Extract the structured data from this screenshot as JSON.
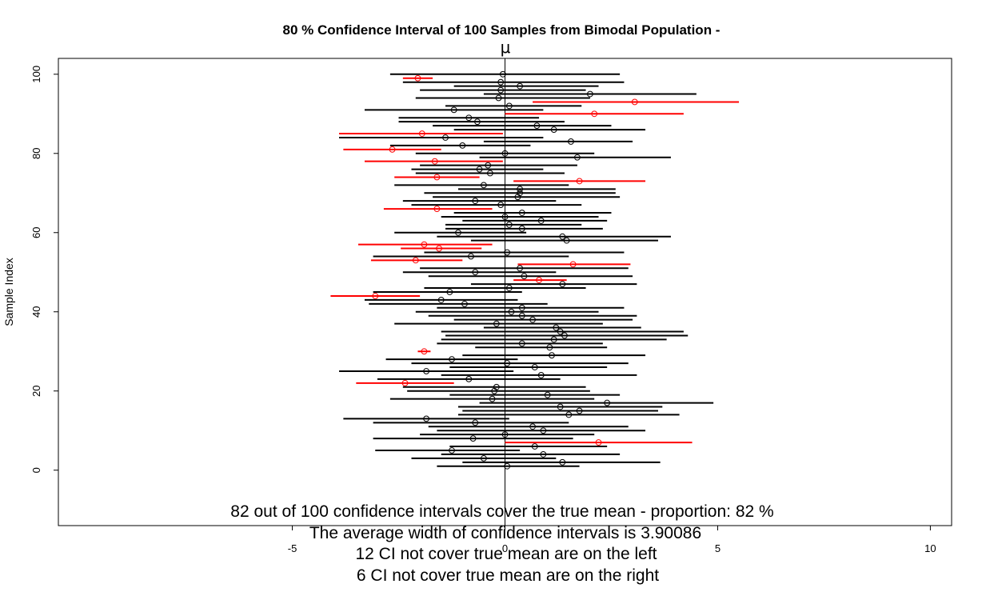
{
  "chart_data": {
    "type": "interval",
    "title": "80 % Confidence Interval of 100  Samples from Bimodal Population -",
    "reference_line_label": "μ",
    "true_mean": 0,
    "xlabel": "",
    "ylabel": "Sample Index",
    "xlim": [
      -10.5,
      10.5
    ],
    "ylim": [
      -14,
      104
    ],
    "x_ticks": [
      -5,
      0,
      5,
      10
    ],
    "y_ticks": [
      0,
      20,
      40,
      60,
      80,
      100
    ],
    "grid": false,
    "colors": {
      "covers": "#000000",
      "misses": "#ff0000",
      "reference": "#000000"
    },
    "intervals": [
      {
        "index": 1,
        "mean": 0.05,
        "lower": -1.6,
        "upper": 1.75,
        "covers": true
      },
      {
        "index": 2,
        "mean": 1.35,
        "lower": -1.0,
        "upper": 3.65,
        "covers": true
      },
      {
        "index": 3,
        "mean": -0.5,
        "lower": -2.2,
        "upper": 1.2,
        "covers": true
      },
      {
        "index": 4,
        "mean": 0.9,
        "lower": -1.5,
        "upper": 2.7,
        "covers": true
      },
      {
        "index": 5,
        "mean": -1.25,
        "lower": -3.05,
        "upper": 0.35,
        "covers": true
      },
      {
        "index": 6,
        "mean": 0.7,
        "lower": -1.3,
        "upper": 2.4,
        "covers": true
      },
      {
        "index": 7,
        "mean": 2.2,
        "lower": 0.0,
        "upper": 4.4,
        "covers": false
      },
      {
        "index": 8,
        "mean": -0.75,
        "lower": -3.1,
        "upper": 1.6,
        "covers": true
      },
      {
        "index": 9,
        "mean": 0.0,
        "lower": -2.0,
        "upper": 2.1,
        "covers": true
      },
      {
        "index": 10,
        "mean": 0.9,
        "lower": -1.6,
        "upper": 3.3,
        "covers": true
      },
      {
        "index": 11,
        "mean": 0.65,
        "lower": -1.8,
        "upper": 2.9,
        "covers": true
      },
      {
        "index": 12,
        "mean": -0.7,
        "lower": -3.1,
        "upper": 1.5,
        "covers": true
      },
      {
        "index": 13,
        "mean": -1.85,
        "lower": -3.8,
        "upper": 0.1,
        "covers": true
      },
      {
        "index": 14,
        "mean": 1.5,
        "lower": -1.1,
        "upper": 4.1,
        "covers": true
      },
      {
        "index": 15,
        "mean": 1.75,
        "lower": -1.0,
        "upper": 3.6,
        "covers": true
      },
      {
        "index": 16,
        "mean": 1.3,
        "lower": -1.1,
        "upper": 3.7,
        "covers": true
      },
      {
        "index": 17,
        "mean": 2.4,
        "lower": -0.6,
        "upper": 4.9,
        "covers": true
      },
      {
        "index": 18,
        "mean": -0.3,
        "lower": -2.7,
        "upper": 2.1,
        "covers": true
      },
      {
        "index": 19,
        "mean": 1.0,
        "lower": -1.3,
        "upper": 2.7,
        "covers": true
      },
      {
        "index": 20,
        "mean": -0.25,
        "lower": -2.3,
        "upper": 2.0,
        "covers": true
      },
      {
        "index": 21,
        "mean": -0.2,
        "lower": -2.4,
        "upper": 1.9,
        "covers": true
      },
      {
        "index": 22,
        "mean": -2.35,
        "lower": -3.5,
        "upper": -1.2,
        "covers": false
      },
      {
        "index": 23,
        "mean": -0.85,
        "lower": -3.0,
        "upper": 1.3,
        "covers": true
      },
      {
        "index": 24,
        "mean": 0.85,
        "lower": -1.5,
        "upper": 3.1,
        "covers": true
      },
      {
        "index": 25,
        "mean": -1.85,
        "lower": -3.9,
        "upper": 0.2,
        "covers": true
      },
      {
        "index": 26,
        "mean": 0.7,
        "lower": -1.3,
        "upper": 2.4,
        "covers": true
      },
      {
        "index": 27,
        "mean": 0.05,
        "lower": -2.2,
        "upper": 2.9,
        "covers": true
      },
      {
        "index": 28,
        "mean": -1.25,
        "lower": -2.8,
        "upper": 0.3,
        "covers": true
      },
      {
        "index": 29,
        "mean": 1.1,
        "lower": -1.0,
        "upper": 3.3,
        "covers": true
      },
      {
        "index": 30,
        "mean": -1.9,
        "lower": -2.05,
        "upper": -1.75,
        "covers": false
      },
      {
        "index": 31,
        "mean": 1.05,
        "lower": -0.7,
        "upper": 2.4,
        "covers": true
      },
      {
        "index": 32,
        "mean": 0.4,
        "lower": -1.6,
        "upper": 2.3,
        "covers": true
      },
      {
        "index": 33,
        "mean": 1.15,
        "lower": -1.5,
        "upper": 3.8,
        "covers": true
      },
      {
        "index": 34,
        "mean": 1.4,
        "lower": -1.4,
        "upper": 4.3,
        "covers": true
      },
      {
        "index": 35,
        "mean": 1.3,
        "lower": -1.5,
        "upper": 4.2,
        "covers": true
      },
      {
        "index": 36,
        "mean": 1.2,
        "lower": -0.5,
        "upper": 3.2,
        "covers": true
      },
      {
        "index": 37,
        "mean": -0.2,
        "lower": -2.6,
        "upper": 2.3,
        "covers": true
      },
      {
        "index": 38,
        "mean": 0.65,
        "lower": -1.2,
        "upper": 3.0,
        "covers": true
      },
      {
        "index": 39,
        "mean": 0.4,
        "lower": -1.8,
        "upper": 3.1,
        "covers": true
      },
      {
        "index": 40,
        "mean": 0.15,
        "lower": -2.1,
        "upper": 2.2,
        "covers": true
      },
      {
        "index": 41,
        "mean": 0.4,
        "lower": -1.6,
        "upper": 2.8,
        "covers": true
      },
      {
        "index": 42,
        "mean": -0.95,
        "lower": -3.2,
        "upper": 1.0,
        "covers": true
      },
      {
        "index": 43,
        "mean": -1.5,
        "lower": -3.3,
        "upper": 0.3,
        "covers": true
      },
      {
        "index": 44,
        "mean": -3.05,
        "lower": -4.1,
        "upper": -2.0,
        "covers": false
      },
      {
        "index": 45,
        "mean": -1.3,
        "lower": -3.1,
        "upper": 0.4,
        "covers": true
      },
      {
        "index": 46,
        "mean": 0.1,
        "lower": -1.9,
        "upper": 1.9,
        "covers": true
      },
      {
        "index": 47,
        "mean": 1.35,
        "lower": -0.8,
        "upper": 3.1,
        "covers": true
      },
      {
        "index": 48,
        "mean": 0.8,
        "lower": 0.2,
        "upper": 1.45,
        "covers": false
      },
      {
        "index": 49,
        "mean": 0.45,
        "lower": -1.8,
        "upper": 3.0,
        "covers": true
      },
      {
        "index": 50,
        "mean": -0.7,
        "lower": -2.4,
        "upper": 1.2,
        "covers": true
      },
      {
        "index": 51,
        "mean": 0.35,
        "lower": -2.0,
        "upper": 2.9,
        "covers": true
      },
      {
        "index": 52,
        "mean": 1.6,
        "lower": 0.3,
        "upper": 2.95,
        "covers": false
      },
      {
        "index": 53,
        "mean": -2.1,
        "lower": -3.15,
        "upper": -1.0,
        "covers": false
      },
      {
        "index": 54,
        "mean": -0.8,
        "lower": -3.1,
        "upper": 1.5,
        "covers": true
      },
      {
        "index": 55,
        "mean": 0.05,
        "lower": -1.9,
        "upper": 2.8,
        "covers": true
      },
      {
        "index": 56,
        "mean": -1.55,
        "lower": -2.45,
        "upper": -0.55,
        "covers": false
      },
      {
        "index": 57,
        "mean": -1.9,
        "lower": -3.45,
        "upper": -0.3,
        "covers": false
      },
      {
        "index": 58,
        "mean": 1.45,
        "lower": -0.8,
        "upper": 3.6,
        "covers": true
      },
      {
        "index": 59,
        "mean": 1.35,
        "lower": -1.6,
        "upper": 3.9,
        "covers": true
      },
      {
        "index": 60,
        "mean": -1.1,
        "lower": -2.6,
        "upper": 0.5,
        "covers": true
      },
      {
        "index": 61,
        "mean": 0.4,
        "lower": -1.4,
        "upper": 2.3,
        "covers": true
      },
      {
        "index": 62,
        "mean": 0.1,
        "lower": -1.4,
        "upper": 1.8,
        "covers": true
      },
      {
        "index": 63,
        "mean": 0.85,
        "lower": -1.0,
        "upper": 2.4,
        "covers": true
      },
      {
        "index": 64,
        "mean": 0.0,
        "lower": -1.5,
        "upper": 2.2,
        "covers": true
      },
      {
        "index": 65,
        "mean": 0.4,
        "lower": -1.2,
        "upper": 2.5,
        "covers": true
      },
      {
        "index": 66,
        "mean": -1.6,
        "lower": -2.85,
        "upper": -0.3,
        "covers": false
      },
      {
        "index": 67,
        "mean": -0.1,
        "lower": -2.2,
        "upper": 1.8,
        "covers": true
      },
      {
        "index": 68,
        "mean": -0.7,
        "lower": -2.4,
        "upper": 1.2,
        "covers": true
      },
      {
        "index": 69,
        "mean": 0.3,
        "lower": -1.7,
        "upper": 2.7,
        "covers": true
      },
      {
        "index": 70,
        "mean": 0.35,
        "lower": -1.9,
        "upper": 2.6,
        "covers": true
      },
      {
        "index": 71,
        "mean": 0.35,
        "lower": -1.1,
        "upper": 2.6,
        "covers": true
      },
      {
        "index": 72,
        "mean": -0.5,
        "lower": -2.6,
        "upper": 1.5,
        "covers": true
      },
      {
        "index": 73,
        "mean": 1.75,
        "lower": 0.2,
        "upper": 3.3,
        "covers": false
      },
      {
        "index": 74,
        "mean": -1.6,
        "lower": -2.6,
        "upper": -0.6,
        "covers": false
      },
      {
        "index": 75,
        "mean": -0.35,
        "lower": -2.1,
        "upper": 1.4,
        "covers": true
      },
      {
        "index": 76,
        "mean": -0.6,
        "lower": -2.2,
        "upper": 0.9,
        "covers": true
      },
      {
        "index": 77,
        "mean": -0.4,
        "lower": -2.0,
        "upper": 1.7,
        "covers": true
      },
      {
        "index": 78,
        "mean": -1.65,
        "lower": -3.3,
        "upper": -0.05,
        "covers": false
      },
      {
        "index": 79,
        "mean": 1.7,
        "lower": -0.6,
        "upper": 3.9,
        "covers": true
      },
      {
        "index": 80,
        "mean": 0.0,
        "lower": -2.1,
        "upper": 2.1,
        "covers": true
      },
      {
        "index": 81,
        "mean": -2.65,
        "lower": -3.8,
        "upper": -1.5,
        "covers": false
      },
      {
        "index": 82,
        "mean": -1.0,
        "lower": -2.7,
        "upper": 0.6,
        "covers": true
      },
      {
        "index": 83,
        "mean": 1.55,
        "lower": -0.5,
        "upper": 3.0,
        "covers": true
      },
      {
        "index": 84,
        "mean": -1.4,
        "lower": -3.9,
        "upper": 0.9,
        "covers": true
      },
      {
        "index": 85,
        "mean": -1.95,
        "lower": -3.9,
        "upper": -0.05,
        "covers": false
      },
      {
        "index": 86,
        "mean": 1.15,
        "lower": -1.2,
        "upper": 3.3,
        "covers": true
      },
      {
        "index": 87,
        "mean": 0.75,
        "lower": -1.7,
        "upper": 2.5,
        "covers": true
      },
      {
        "index": 88,
        "mean": -0.65,
        "lower": -2.5,
        "upper": 1.4,
        "covers": true
      },
      {
        "index": 89,
        "mean": -0.85,
        "lower": -2.5,
        "upper": 0.8,
        "covers": true
      },
      {
        "index": 90,
        "mean": 2.1,
        "lower": 0.0,
        "upper": 4.2,
        "covers": false
      },
      {
        "index": 91,
        "mean": -1.2,
        "lower": -3.3,
        "upper": 0.9,
        "covers": true
      },
      {
        "index": 92,
        "mean": 0.1,
        "lower": -1.4,
        "upper": 1.8,
        "covers": true
      },
      {
        "index": 93,
        "mean": 3.05,
        "lower": 0.65,
        "upper": 5.5,
        "covers": false
      },
      {
        "index": 94,
        "mean": -0.15,
        "lower": -2.1,
        "upper": 2.0,
        "covers": true
      },
      {
        "index": 95,
        "mean": 2.0,
        "lower": -0.5,
        "upper": 4.5,
        "covers": true
      },
      {
        "index": 96,
        "mean": -0.1,
        "lower": -2.0,
        "upper": 1.9,
        "covers": true
      },
      {
        "index": 97,
        "mean": 0.35,
        "lower": -1.2,
        "upper": 2.2,
        "covers": true
      },
      {
        "index": 98,
        "mean": -0.1,
        "lower": -2.4,
        "upper": 2.8,
        "covers": true
      },
      {
        "index": 99,
        "mean": -2.05,
        "lower": -2.4,
        "upper": -1.7,
        "covers": false
      },
      {
        "index": 100,
        "mean": -0.05,
        "lower": -2.7,
        "upper": 2.7,
        "covers": true
      }
    ],
    "annotations": [
      "82 out of 100 confidence intervals cover the true mean - proportion: 82 %",
      "The average width of confidence intervals is 3.90086",
      "12 CI not cover true mean are on the left",
      "6 CI not cover true mean are on the right"
    ]
  }
}
